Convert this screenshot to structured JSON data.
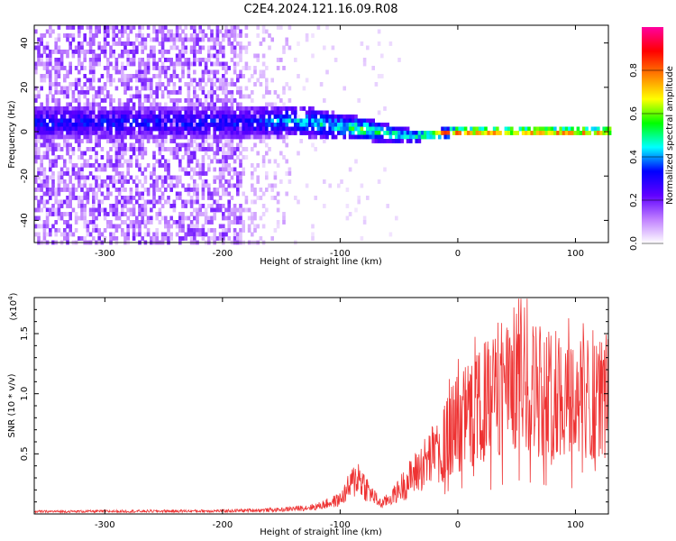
{
  "title": "C2E4.2024.121.16.09.R08",
  "chart_data": [
    {
      "type": "heatmap",
      "title": "C2E4.2024.121.16.09.R08",
      "xlabel": "Height of straight line (km)",
      "ylabel": "Frequency (Hz)",
      "xlim": [
        -360,
        128
      ],
      "ylim": [
        -50,
        48
      ],
      "xticks": [
        -300,
        -200,
        -100,
        0,
        100
      ],
      "yticks": [
        -40,
        -20,
        0,
        20,
        40
      ],
      "xtick_labels": [
        "-300",
        "-200",
        "-100",
        "0",
        "100"
      ],
      "ytick_labels": [
        "-40",
        "-20",
        "0",
        "20",
        "40"
      ],
      "colorbar": {
        "label": "Normalized spectral amplitude",
        "range": [
          0,
          1
        ],
        "ticks": [
          0.0,
          0.2,
          0.4,
          0.6,
          0.8
        ],
        "tick_labels": [
          "0.0",
          "0.2",
          "0.4",
          "0.6",
          "0.8"
        ],
        "colors": [
          "#ffffff",
          "#c080ff",
          "#6000ff",
          "#0000ff",
          "#00ffff",
          "#00ff00",
          "#ffff00",
          "#ff8000",
          "#ff0000",
          "#ff00a0"
        ]
      },
      "band": [
        {
          "x": -180,
          "center": 5,
          "spread": 8,
          "peak": 0.35
        },
        {
          "x": -140,
          "center": 6,
          "spread": 7,
          "peak": 0.45
        },
        {
          "x": -100,
          "center": 3,
          "spread": 6,
          "peak": 0.5
        },
        {
          "x": -80,
          "center": 2,
          "spread": 5,
          "peak": 0.6
        },
        {
          "x": -60,
          "center": 0,
          "spread": 4,
          "peak": 0.55
        },
        {
          "x": -40,
          "center": -1,
          "spread": 3,
          "peak": 0.5
        },
        {
          "x": -20,
          "center": 0,
          "spread": 2,
          "peak": 0.75
        },
        {
          "x": 0,
          "center": 1,
          "spread": 2,
          "peak": 0.9
        },
        {
          "x": 50,
          "center": 1,
          "spread": 2,
          "peak": 0.9
        },
        {
          "x": 128,
          "center": 1,
          "spread": 2,
          "peak": 0.9
        }
      ]
    },
    {
      "type": "line",
      "xlabel": "Height of straight line (km)",
      "ylabel": "SNR (10 * v/v)",
      "y_multiplier": "(x10",
      "y_multiplier_exp": "4",
      "y_multiplier_close": ")",
      "xlim": [
        -360,
        128
      ],
      "ylim": [
        0,
        18000
      ],
      "xticks": [
        -300,
        -200,
        -100,
        0,
        100
      ],
      "yticks": [
        5000,
        10000,
        15000
      ],
      "xtick_labels": [
        "-300",
        "-200",
        "-100",
        "0",
        "100"
      ],
      "ytick_labels": [
        "0.5",
        "1.0",
        "1.5"
      ],
      "color": "#ee3333",
      "series": [
        {
          "name": "SNR",
          "x": [
            -360,
            -200,
            -150,
            -120,
            -100,
            -90,
            -85,
            -75,
            -65,
            -55,
            -45,
            -35,
            -25,
            -15,
            -5,
            5,
            15,
            25,
            35,
            45,
            55,
            65,
            75,
            85,
            95,
            105,
            115,
            128
          ],
          "y": [
            200,
            250,
            350,
            600,
            1200,
            2500,
            3200,
            1800,
            800,
            1500,
            2500,
            3500,
            4500,
            5500,
            7000,
            8000,
            8500,
            9500,
            10500,
            11000,
            12000,
            10500,
            10000,
            10000,
            9800,
            9500,
            9700,
            9800
          ]
        }
      ]
    }
  ]
}
